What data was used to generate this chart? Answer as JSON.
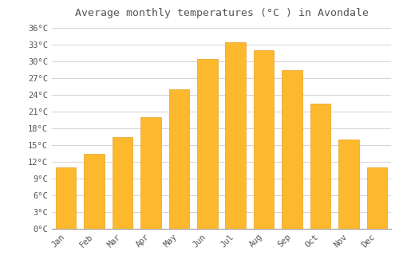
{
  "title": "Average monthly temperatures (°C ) in Avondale",
  "months": [
    "Jan",
    "Feb",
    "Mar",
    "Apr",
    "May",
    "Jun",
    "Jul",
    "Aug",
    "Sep",
    "Oct",
    "Nov",
    "Dec"
  ],
  "temperatures": [
    11.0,
    13.5,
    16.5,
    20.0,
    25.0,
    30.5,
    33.5,
    32.0,
    28.5,
    22.5,
    16.0,
    11.0
  ],
  "bar_color": "#FDB92E",
  "bar_edge_color": "#E8A020",
  "background_color": "#FFFFFF",
  "grid_color": "#CCCCCC",
  "text_color": "#555555",
  "ylim": [
    0,
    37
  ],
  "yticks": [
    0,
    3,
    6,
    9,
    12,
    15,
    18,
    21,
    24,
    27,
    30,
    33,
    36
  ],
  "ylabel_suffix": "°C",
  "title_fontsize": 9.5,
  "tick_fontsize": 7.5,
  "font_family": "monospace"
}
